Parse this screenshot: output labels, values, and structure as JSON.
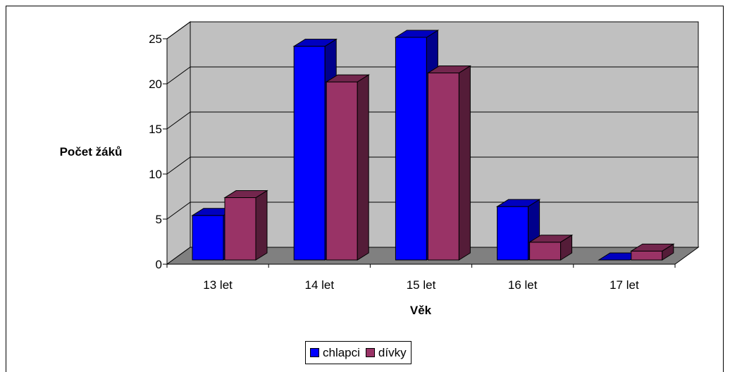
{
  "chart_data": {
    "type": "bar",
    "categories": [
      "13 let",
      "14 let",
      "15 let",
      "16 let",
      "17 let"
    ],
    "series": [
      {
        "name": "chlapci",
        "values": [
          5,
          24,
          25,
          6,
          0
        ],
        "color": "#0000FF"
      },
      {
        "name": "dívky",
        "values": [
          7,
          20,
          21,
          2,
          1
        ],
        "color": "#993366"
      }
    ],
    "yticks": [
      0,
      5,
      10,
      15,
      20,
      25
    ],
    "ylim": [
      0,
      25
    ],
    "xlabel": "Věk",
    "ylabel": "Počet žáků",
    "grid": true,
    "legend_position": "bottom",
    "wall_color": "#C0C0C0",
    "floor_color": "#808080"
  }
}
